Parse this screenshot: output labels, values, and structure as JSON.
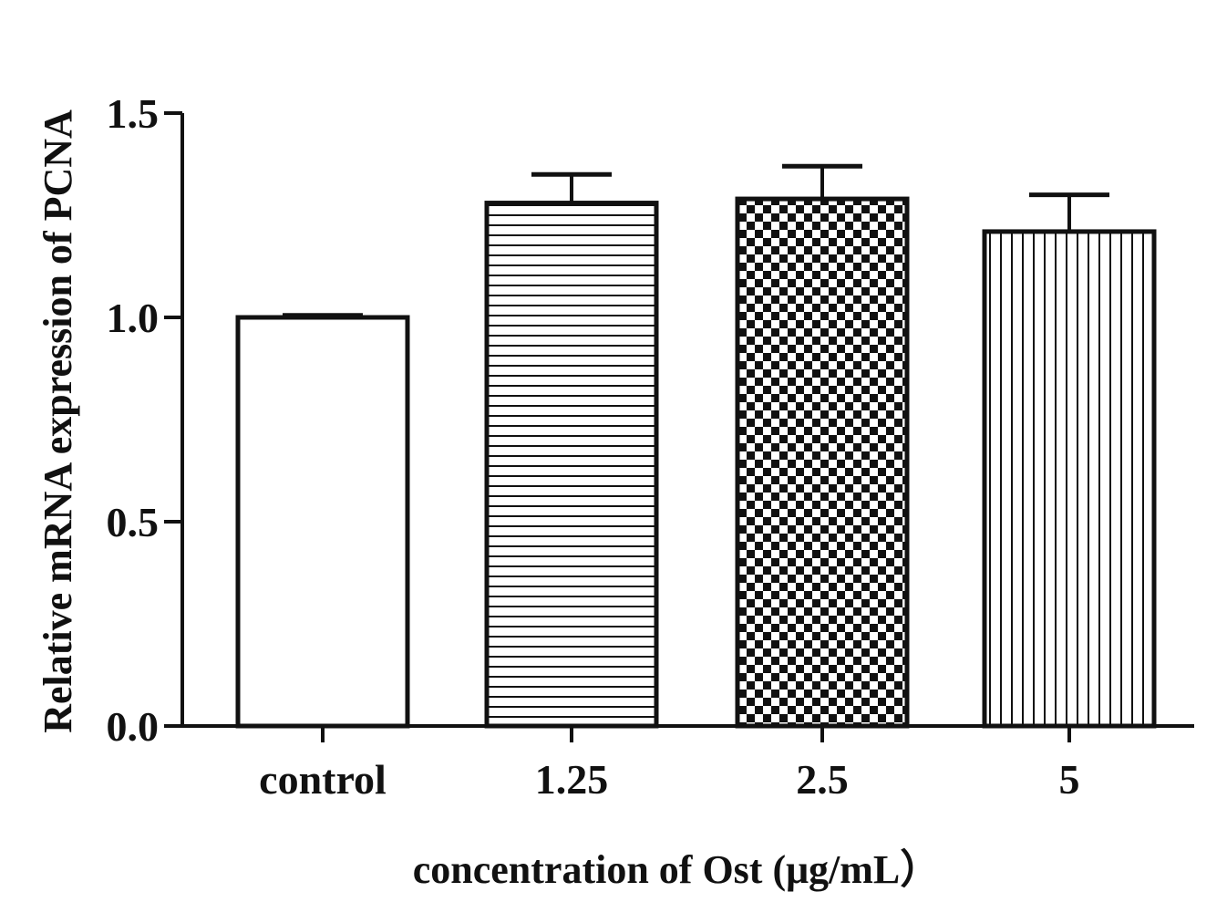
{
  "chart_data": {
    "type": "bar",
    "title": "",
    "xlabel": "concentration of Ost (μg/mL）",
    "ylabel": "Relative mRNA expression of PCNA",
    "categories": [
      "control",
      "1.25",
      "2.5",
      "5"
    ],
    "values": [
      1.0,
      1.28,
      1.29,
      1.21
    ],
    "errors": [
      0.005,
      0.07,
      0.08,
      0.09
    ],
    "patterns": [
      "none",
      "horizontal-lines",
      "checkerboard",
      "vertical-lines"
    ],
    "ylim": [
      0,
      1.5
    ],
    "yticks": [
      0.0,
      0.5,
      1.0,
      1.5
    ],
    "ytick_labels": [
      "0.0",
      "0.5",
      "1.0",
      "1.5"
    ],
    "grid": false,
    "legend": "none"
  },
  "colors": {
    "stroke": "#111111",
    "background": "#ffffff"
  }
}
